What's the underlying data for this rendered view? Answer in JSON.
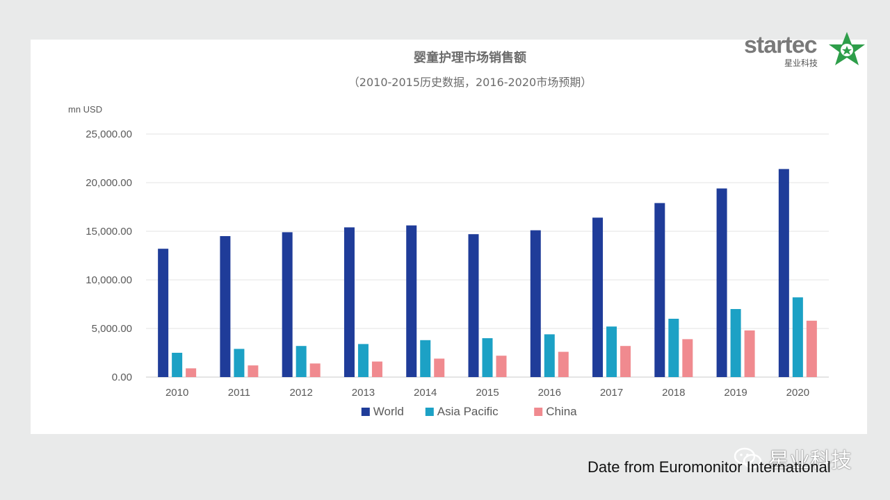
{
  "chart_data": {
    "type": "bar",
    "title": "婴童护理市场销售额",
    "subtitle": "（2010-2015历史数据，2016-2020市场预期）",
    "ylabel": "mn USD",
    "ylim": [
      0,
      25000
    ],
    "yticks": [
      "0.00",
      "5,000.00",
      "10,000.00",
      "15,000.00",
      "20,000.00",
      "25,000.00"
    ],
    "categories": [
      "2010",
      "2011",
      "2012",
      "2013",
      "2014",
      "2015",
      "2016",
      "2017",
      "2018",
      "2019",
      "2020"
    ],
    "series": [
      {
        "name": "World",
        "color": "#1f3c99",
        "values": [
          13200,
          14500,
          14900,
          15400,
          15600,
          14700,
          15100,
          16400,
          17900,
          19400,
          21400
        ]
      },
      {
        "name": "Asia Pacific",
        "color": "#1ca1c5",
        "values": [
          2500,
          2900,
          3200,
          3400,
          3800,
          4000,
          4400,
          5200,
          6000,
          7000,
          8200
        ]
      },
      {
        "name": "China",
        "color": "#f08a8f",
        "values": [
          900,
          1200,
          1400,
          1600,
          1900,
          2200,
          2600,
          3200,
          3900,
          4800,
          5800
        ]
      }
    ],
    "grid": true,
    "legend": "bottom"
  },
  "logo": {
    "word": "startec",
    "subtitle": "星业科技"
  },
  "watermark": {
    "text": "星业科技",
    "icon": "wechat-icon"
  },
  "source": "Date from Euromonitor International"
}
